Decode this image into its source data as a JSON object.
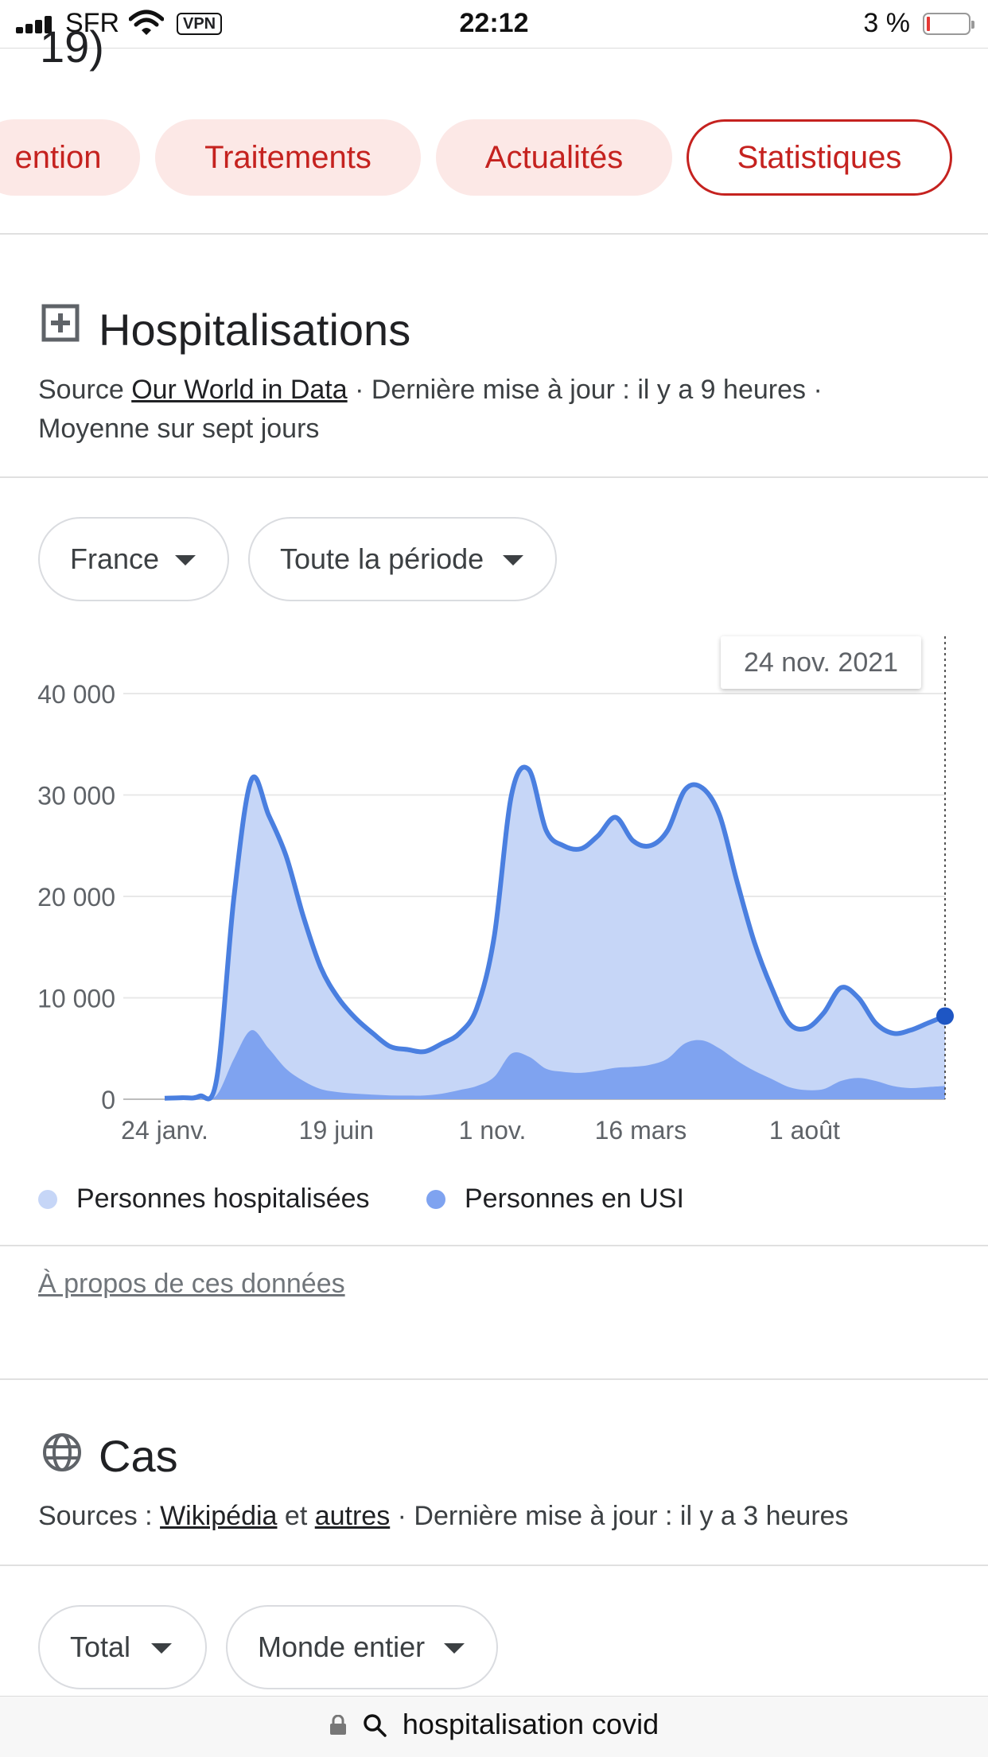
{
  "status_bar": {
    "carrier": "SFR",
    "vpn": "VPN",
    "time": "22:12",
    "battery": "3 %"
  },
  "header": {
    "partial_title": "19)"
  },
  "tabs": [
    {
      "label": "ention",
      "selected": false
    },
    {
      "label": "Traitements",
      "selected": false
    },
    {
      "label": "Actualités",
      "selected": false
    },
    {
      "label": "Statistiques",
      "selected": true
    }
  ],
  "hospitalisations": {
    "title": "Hospitalisations",
    "icon": "hospital-plus-icon",
    "source_prefix": "Source ",
    "source_link": "Our World in Data",
    "source_suffix": " · Dernière mise à jour : il y a 9 heures ·",
    "line2": "Moyenne sur sept jours",
    "filters": {
      "country": "France",
      "period": "Toute la période"
    },
    "tooltip_date": "24 nov. 2021",
    "about_link": "À propos de ces données"
  },
  "chart_data": {
    "type": "area",
    "x_tick_labels": [
      "24 janv.",
      "19 juin",
      "1 nov.",
      "16 mars",
      "1 août"
    ],
    "y_tick_labels": [
      "0",
      "10 000",
      "20 000",
      "30 000",
      "40 000"
    ],
    "ylim": [
      0,
      40000
    ],
    "grid": true,
    "legend_position": "bottom",
    "colors": {
      "hospitalized_fill": "#c6d6f7",
      "hospitalized_line": "#4a7fe0",
      "icu_fill": "#7fa3f0",
      "point": "#1e56c4"
    },
    "series": [
      {
        "name": "Personnes hospitalisées",
        "values": [
          100,
          150,
          300,
          2000,
          20000,
          31500,
          28000,
          24000,
          18000,
          13000,
          10000,
          8000,
          6500,
          5200,
          4900,
          4700,
          5500,
          6500,
          9000,
          16000,
          30000,
          32500,
          26500,
          25000,
          24700,
          26000,
          27800,
          25500,
          25000,
          26500,
          30500,
          30700,
          28000,
          21500,
          15500,
          11000,
          7500,
          7000,
          8500,
          11000,
          10000,
          7500,
          6500,
          6800,
          7500,
          8200
        ]
      },
      {
        "name": "Personnes en USI",
        "values": [
          20,
          30,
          60,
          400,
          4000,
          6800,
          5000,
          3000,
          1800,
          1000,
          700,
          550,
          450,
          380,
          360,
          380,
          550,
          900,
          1300,
          2200,
          4500,
          4200,
          3000,
          2700,
          2600,
          2800,
          3100,
          3200,
          3400,
          4000,
          5500,
          5800,
          5000,
          3800,
          2800,
          2000,
          1200,
          900,
          1000,
          1800,
          2100,
          1800,
          1300,
          1100,
          1200,
          1300
        ]
      }
    ]
  },
  "cas": {
    "title": "Cas",
    "icon": "globe-icon",
    "sources_prefix": "Sources : ",
    "link1": "Wikipédia",
    "connector": " et ",
    "link2": "autres",
    "suffix": " · Dernière mise à jour : il y a 3 heures",
    "filters": {
      "metric": "Total",
      "region": "Monde entier"
    }
  },
  "browser": {
    "url": "hospitalisation covid"
  }
}
